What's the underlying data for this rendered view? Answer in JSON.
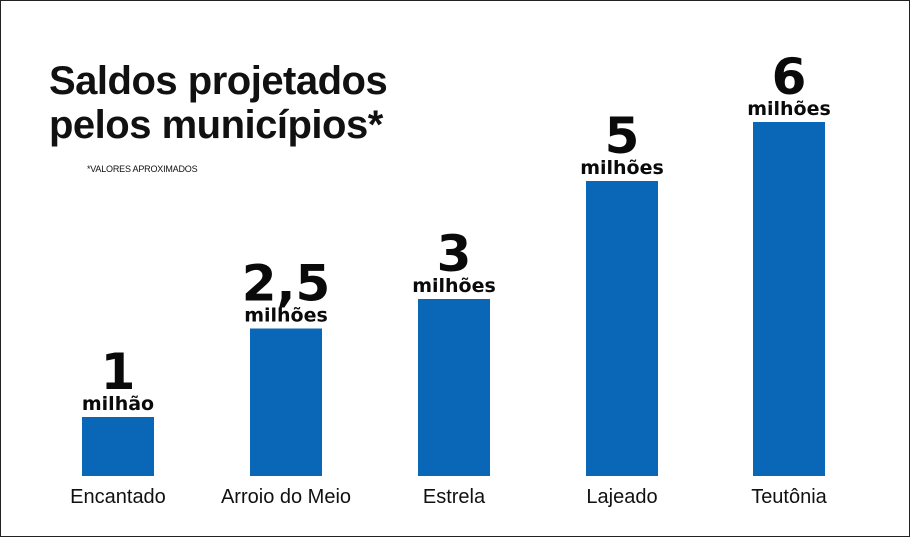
{
  "chart_data": {
    "type": "bar",
    "title": "Saldos projetados pelos municípios*",
    "title_lines": [
      "Saldos projetados",
      "pelos municípios*"
    ],
    "note": "*VALORES APROXIMADOS",
    "categories": [
      "Encantado",
      "Arroio do Meio",
      "Estrela",
      "Lajeado",
      "Teutônia"
    ],
    "values": [
      1,
      2.5,
      3,
      5,
      6
    ],
    "value_labels": [
      "1",
      "2,5",
      "3",
      "5",
      "6"
    ],
    "unit_labels": [
      "milhão",
      "milhões",
      "milhões",
      "milhões",
      "milhões"
    ],
    "bar_color": "#0a67b8",
    "xlabel": "",
    "ylabel": "",
    "ylim": [
      0,
      6
    ],
    "grid": false
  }
}
